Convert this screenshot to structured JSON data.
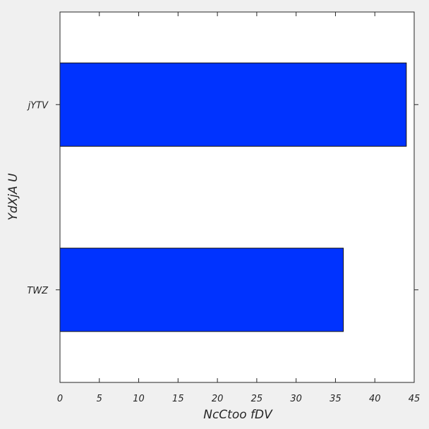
{
  "chart_data": {
    "type": "bar",
    "orientation": "horizontal",
    "title": "",
    "xlabel": "NcCtoo fDV",
    "ylabel": "YdXjA U",
    "categories": [
      "jYTV",
      "TWZ"
    ],
    "values": [
      44,
      36
    ],
    "xlim": [
      0,
      45
    ],
    "x_ticks": [
      "0",
      "5",
      "10",
      "15",
      "20",
      "25",
      "30",
      "35",
      "40",
      "45"
    ],
    "grid": false,
    "bar_color": "#0033ff"
  }
}
